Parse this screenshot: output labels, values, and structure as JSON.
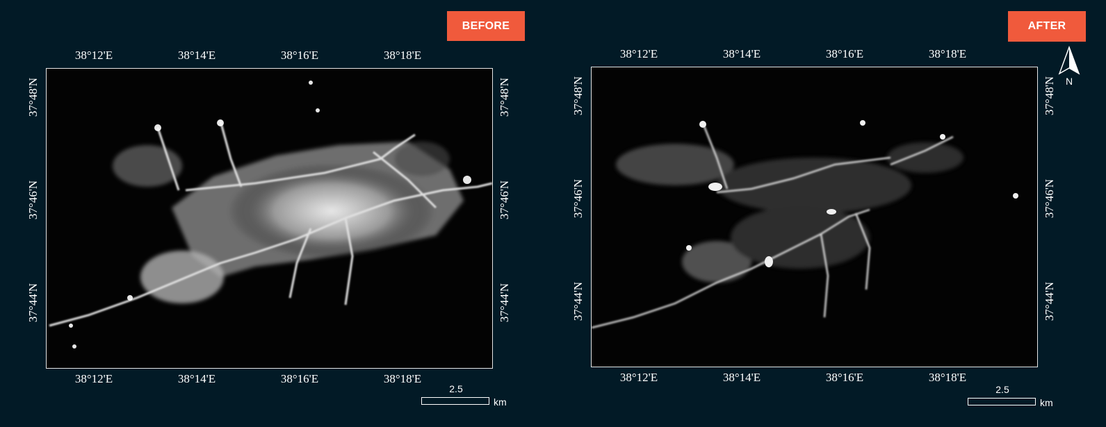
{
  "before": {
    "badge": "BEFORE",
    "scale": {
      "value": "2.5",
      "unit": "km"
    }
  },
  "after": {
    "badge": "AFTER",
    "scale": {
      "value": "2.5",
      "unit": "km"
    }
  },
  "lon_ticks": [
    "38°12'E",
    "38°14'E",
    "38°16'E",
    "38°18'E"
  ],
  "lat_ticks": [
    "37°48'N",
    "37°46'N",
    "37°44'N"
  ],
  "north_arrow_label": "N"
}
